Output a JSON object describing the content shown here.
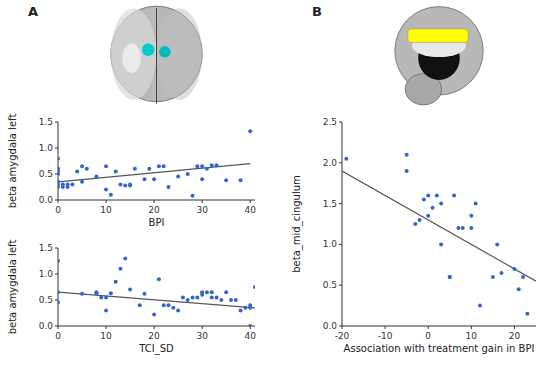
{
  "chart_data": [
    {
      "type": "scatter",
      "annotations": [
        "A"
      ],
      "x_label": "BPI",
      "y_label": "beta amygdala left",
      "xlim": [
        0,
        41
      ],
      "ylim": [
        0,
        1.5
      ],
      "xticks": [
        0,
        10,
        20,
        30,
        40
      ],
      "yticks": [
        {
          "value": 0,
          "label": "0.0"
        },
        {
          "value": 0.5,
          "label": "0.5"
        },
        {
          "value": 1.0,
          "label": "1.0"
        },
        {
          "value": 1.5,
          "label": "1.5"
        }
      ],
      "grid": false,
      "series": [
        {
          "type": "scatter",
          "color": "#3366cc",
          "x": [
            0,
            0,
            0,
            0,
            0,
            0,
            0,
            0,
            1,
            1,
            2,
            2,
            3,
            4,
            5,
            5,
            6,
            8,
            10,
            10,
            11,
            12,
            13,
            14,
            15,
            15,
            16,
            18,
            19,
            20,
            21,
            22,
            23,
            25,
            27,
            28,
            29,
            30,
            30,
            31,
            32,
            33,
            35,
            38,
            40
          ],
          "values": [
            0.8,
            0.6,
            0.6,
            0.55,
            0.5,
            0.35,
            0.3,
            0.25,
            0.3,
            0.25,
            0.3,
            0.25,
            0.3,
            0.55,
            0.65,
            0.35,
            0.6,
            0.45,
            0.65,
            0.2,
            0.1,
            0.55,
            0.3,
            0.28,
            0.3,
            0.28,
            0.6,
            0.4,
            0.6,
            0.4,
            0.65,
            0.65,
            0.25,
            0.45,
            0.5,
            0.08,
            0.65,
            0.4,
            0.65,
            0.6,
            0.67,
            0.67,
            0.38,
            0.38,
            1.32
          ]
        },
        {
          "type": "line",
          "color": "#555555",
          "x": [
            0,
            40
          ],
          "values": [
            0.35,
            0.7
          ]
        }
      ]
    },
    {
      "type": "scatter",
      "x_label": "TCI_SD",
      "y_label": "beta amygdala left",
      "xlim": [
        0,
        41
      ],
      "ylim": [
        0,
        1.5
      ],
      "xticks": [
        0,
        10,
        20,
        30,
        40
      ],
      "yticks": [
        {
          "value": 0,
          "label": "0.0"
        },
        {
          "value": 0.5,
          "label": "0.5"
        },
        {
          "value": 1.0,
          "label": "1.0"
        },
        {
          "value": 1.5,
          "label": "1.5"
        }
      ],
      "grid": false,
      "series": [
        {
          "type": "scatter",
          "color": "#3366cc",
          "x": [
            0,
            0,
            0,
            5,
            8,
            8,
            9,
            10,
            10,
            11,
            12,
            13,
            14,
            15,
            17,
            18,
            20,
            21,
            22,
            23,
            24,
            25,
            26,
            27,
            28,
            29,
            30,
            30,
            31,
            32,
            32,
            33,
            34,
            35,
            36,
            37,
            38,
            39,
            40,
            40,
            40,
            41
          ],
          "values": [
            1.25,
            0.65,
            0.45,
            0.62,
            0.65,
            0.63,
            0.55,
            0.55,
            0.3,
            0.63,
            0.85,
            1.1,
            1.3,
            0.7,
            0.4,
            0.62,
            0.22,
            0.9,
            0.4,
            0.4,
            0.35,
            0.3,
            0.55,
            0.5,
            0.55,
            0.55,
            0.6,
            0.65,
            0.65,
            0.65,
            0.55,
            0.55,
            0.5,
            0.65,
            0.5,
            0.5,
            0.3,
            0.35,
            0.35,
            0.4,
            0.0,
            0.75
          ]
        },
        {
          "type": "line",
          "color": "#555555",
          "x": [
            0,
            41
          ],
          "values": [
            0.65,
            0.35
          ]
        }
      ]
    },
    {
      "type": "scatter",
      "annotations": [
        "B"
      ],
      "x_label": "Association with treatment gain in BPI",
      "y_label": "beta_mid_cingulum",
      "xlim": [
        -20,
        25
      ],
      "ylim": [
        0,
        2.5
      ],
      "xticks": [
        -20,
        -10,
        0,
        10,
        20
      ],
      "yticks": [
        {
          "value": 0,
          "label": "0.0"
        },
        {
          "value": 0.5,
          "label": "0.5"
        },
        {
          "value": 1.0,
          "label": "1.0"
        },
        {
          "value": 1.5,
          "label": "1.5"
        },
        {
          "value": 2.0,
          "label": "2.0"
        },
        {
          "value": 2.5,
          "label": "2.5"
        }
      ],
      "grid": false,
      "series": [
        {
          "type": "scatter",
          "color": "#3366cc",
          "x": [
            -19,
            -5,
            -5,
            -3,
            -2,
            -1,
            0,
            0,
            1,
            2,
            3,
            3,
            5,
            5,
            6,
            7,
            8,
            10,
            10,
            11,
            12,
            15,
            16,
            17,
            20,
            21,
            22,
            23
          ],
          "values": [
            2.05,
            2.1,
            1.9,
            1.25,
            1.3,
            1.55,
            1.35,
            1.6,
            1.45,
            1.6,
            1.5,
            1.0,
            0.6,
            0.6,
            1.6,
            1.2,
            1.2,
            1.2,
            1.35,
            1.5,
            0.25,
            0.6,
            1.0,
            0.65,
            0.7,
            0.45,
            0.6,
            0.15
          ]
        },
        {
          "type": "line",
          "color": "#555555",
          "x": [
            -20,
            25
          ],
          "values": [
            1.9,
            0.55
          ]
        }
      ]
    }
  ]
}
